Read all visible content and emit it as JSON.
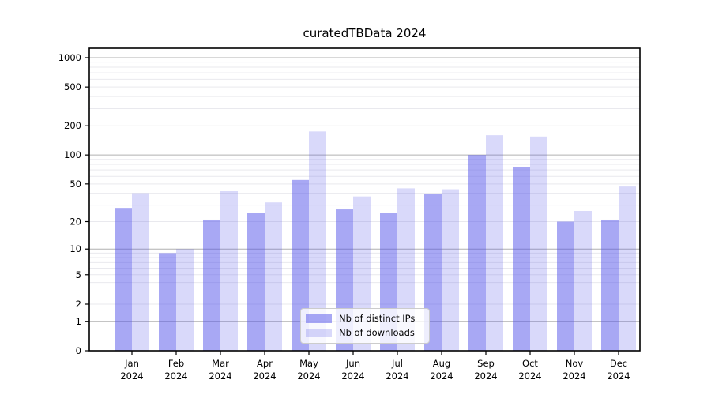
{
  "title": "curatedTBData 2024",
  "legend": {
    "items": [
      {
        "label": "Nb of distinct IPs"
      },
      {
        "label": "Nb of downloads"
      }
    ]
  },
  "chart_data": {
    "type": "bar",
    "title": "curatedTBData 2024",
    "categories": [
      "Jan 2024",
      "Feb 2024",
      "Mar 2024",
      "Apr 2024",
      "May 2024",
      "Jun 2024",
      "Jul 2024",
      "Aug 2024",
      "Sep 2024",
      "Oct 2024",
      "Nov 2024",
      "Dec 2024"
    ],
    "series": [
      {
        "name": "Nb of distinct IPs",
        "color": "rgba(81,81,233,0.50)",
        "values": [
          28,
          9,
          21,
          25,
          55,
          27,
          25,
          39,
          100,
          75,
          20,
          21
        ]
      },
      {
        "name": "Nb of downloads",
        "color": "rgba(81,81,233,0.22)",
        "values": [
          40,
          10,
          42,
          32,
          175,
          37,
          45,
          44,
          160,
          155,
          26,
          47
        ]
      }
    ],
    "xlabel": "",
    "ylabel": "",
    "yscale": "log1p",
    "yticks": [
      0,
      1,
      2,
      5,
      10,
      20,
      50,
      100,
      200,
      500,
      1000
    ],
    "ylim": [
      0,
      1250
    ],
    "grid": {
      "major_values": [
        1,
        10,
        100,
        1000
      ],
      "major_color": "#b0b0b0",
      "minor_color": "#e9e9ee"
    },
    "axis_color": "#000000",
    "legend_position": "lower-center"
  }
}
